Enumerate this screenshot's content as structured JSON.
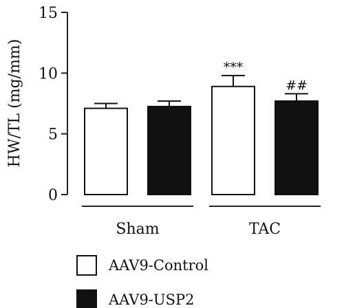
{
  "chart_data": {
    "type": "bar",
    "title": "",
    "xlabel": "",
    "ylabel": "HW/TL (mg/mm)",
    "ylim": [
      0,
      15
    ],
    "yticks": [
      0,
      5,
      10,
      15
    ],
    "grid": false,
    "legend_position": "bottom-left",
    "categories": [
      "Sham",
      "TAC"
    ],
    "series": [
      {
        "name": "AAV9-Control",
        "color": "#ffffff",
        "values": [
          7.1,
          8.9
        ],
        "errors": [
          0.4,
          0.9
        ],
        "annotations": [
          "",
          "***"
        ]
      },
      {
        "name": "AAV9-USP2",
        "color": "#111111",
        "values": [
          7.25,
          7.7
        ],
        "errors": [
          0.45,
          0.6
        ],
        "annotations": [
          "",
          "##"
        ]
      }
    ]
  }
}
